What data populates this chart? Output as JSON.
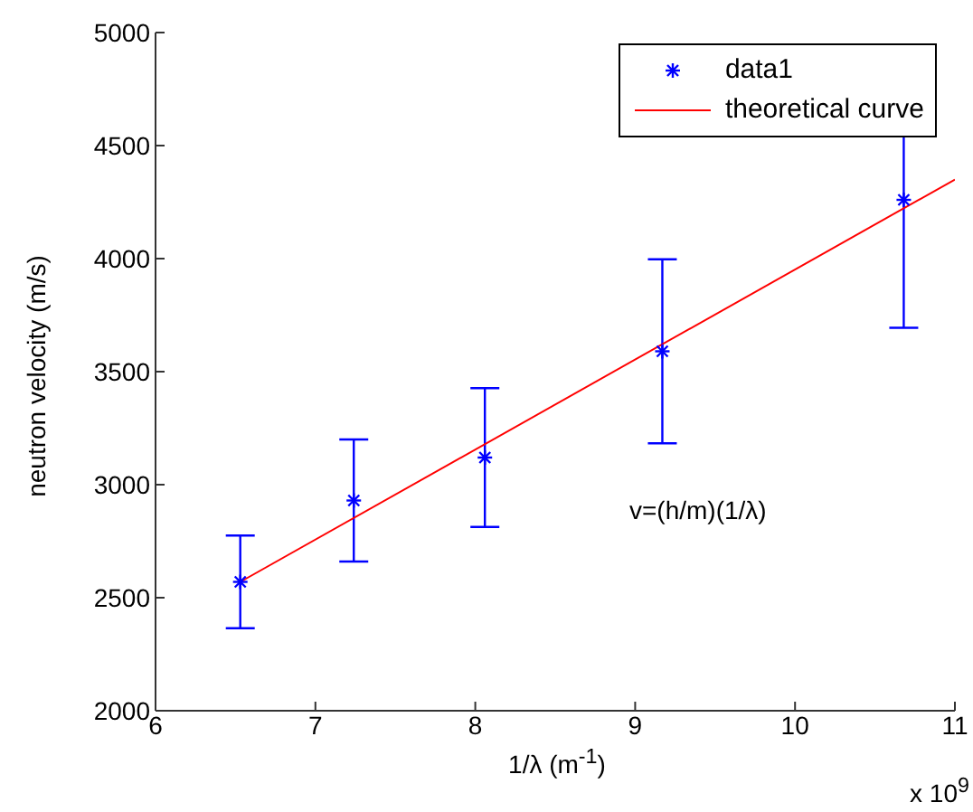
{
  "chart_data": {
    "type": "scatter",
    "xlabel": "1/λ (m$^{-1}$)",
    "ylabel": "neutron velocity (m/s)",
    "xlim": [
      6,
      11
    ],
    "xticks": [
      6,
      7,
      8,
      9,
      10,
      11
    ],
    "ylim": [
      2000,
      5000
    ],
    "yticks": [
      2000,
      2500,
      3000,
      3500,
      4000,
      4500,
      5000
    ],
    "legend": "top right",
    "series": [
      {
        "name": "data1",
        "marker": "cross",
        "color": "#0000ff",
        "x": [
          6.53,
          7.24,
          8.06,
          9.17,
          10.68
        ],
        "values": [
          2570,
          2930,
          3120,
          3590,
          4260
        ],
        "errors": [
          205,
          270,
          307,
          407,
          566
        ]
      },
      {
        "name": "theoretical curve",
        "type": "line",
        "line_style": "solid",
        "color": "#ff0000",
        "x": [
          6.53,
          11
        ],
        "values": [
          2570,
          4350
        ]
      }
    ],
    "annotations": [
      "v=(h/m)(1/λ)",
      "x 10$^{9}$"
    ]
  }
}
